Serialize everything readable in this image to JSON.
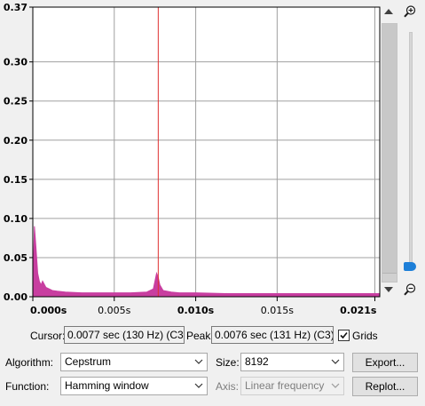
{
  "plot": {
    "y_ticks": [
      "0.37",
      "0.30",
      "0.25",
      "0.20",
      "0.15",
      "0.10",
      "0.05",
      "0.00"
    ],
    "y_tick_values": [
      0.37,
      0.3,
      0.25,
      0.2,
      0.15,
      0.1,
      0.05,
      0.0
    ],
    "y_tick_bold": [
      true,
      true,
      false,
      true,
      false,
      true,
      false,
      true
    ],
    "x_ticks": [
      "0.000s",
      "0.005s",
      "0.010s",
      "0.015s",
      "0.021s"
    ],
    "x_tick_values": [
      0.0,
      0.005,
      0.01,
      0.015,
      0.021
    ],
    "x_tick_bold": [
      true,
      false,
      true,
      false,
      true
    ],
    "x_range": [
      0.0,
      0.0213
    ],
    "y_range": [
      0.0,
      0.37
    ],
    "cursor_x": 0.0077,
    "grid": true,
    "colors": {
      "spectrum": "#c83ea0",
      "cursor": "#e03030",
      "grid": "#a0a0a0",
      "background": "#ffffff"
    }
  },
  "chart_data": {
    "type": "area",
    "xlabel": "",
    "ylabel": "",
    "xlim": [
      0.0,
      0.0213
    ],
    "ylim": [
      0.0,
      0.37
    ],
    "series": [
      {
        "x": [
          0.0,
          0.0001,
          0.0002,
          0.0003,
          0.0004,
          0.0005,
          0.0006,
          0.0008,
          0.001,
          0.0012,
          0.0015,
          0.002,
          0.003,
          0.004,
          0.005,
          0.006,
          0.007,
          0.0074,
          0.0076,
          0.0077,
          0.0078,
          0.008,
          0.0085,
          0.009,
          0.01,
          0.012,
          0.015,
          0.018,
          0.02,
          0.0213
        ],
        "y": [
          0.01,
          0.09,
          0.06,
          0.03,
          0.02,
          0.015,
          0.02,
          0.012,
          0.01,
          0.008,
          0.007,
          0.006,
          0.005,
          0.005,
          0.005,
          0.005,
          0.006,
          0.01,
          0.03,
          0.025,
          0.015,
          0.008,
          0.006,
          0.005,
          0.005,
          0.004,
          0.004,
          0.004,
          0.004,
          0.004
        ]
      }
    ]
  },
  "controls": {
    "cursor_label": "Cursor:",
    "cursor_value": "0.0077 sec (130 Hz) (C3)",
    "peak_label": "Peak:",
    "peak_value": "0.0076 sec (131 Hz) (C3)",
    "grids_label": "Grids",
    "grids_checked": true,
    "algorithm_label": "Algorithm:",
    "algorithm_value": "Cepstrum",
    "size_label": "Size:",
    "size_value": "8192",
    "function_label": "Function:",
    "function_value": "Hamming window",
    "axis_label": "Axis:",
    "axis_value": "Linear frequency",
    "export_button": "Export...",
    "replot_button": "Replot..."
  },
  "icons": {
    "zoom_in": "zoom-in-icon",
    "zoom_out": "zoom-out-icon",
    "checkmark": "check-icon",
    "dropdown": "chevron-down-icon"
  }
}
